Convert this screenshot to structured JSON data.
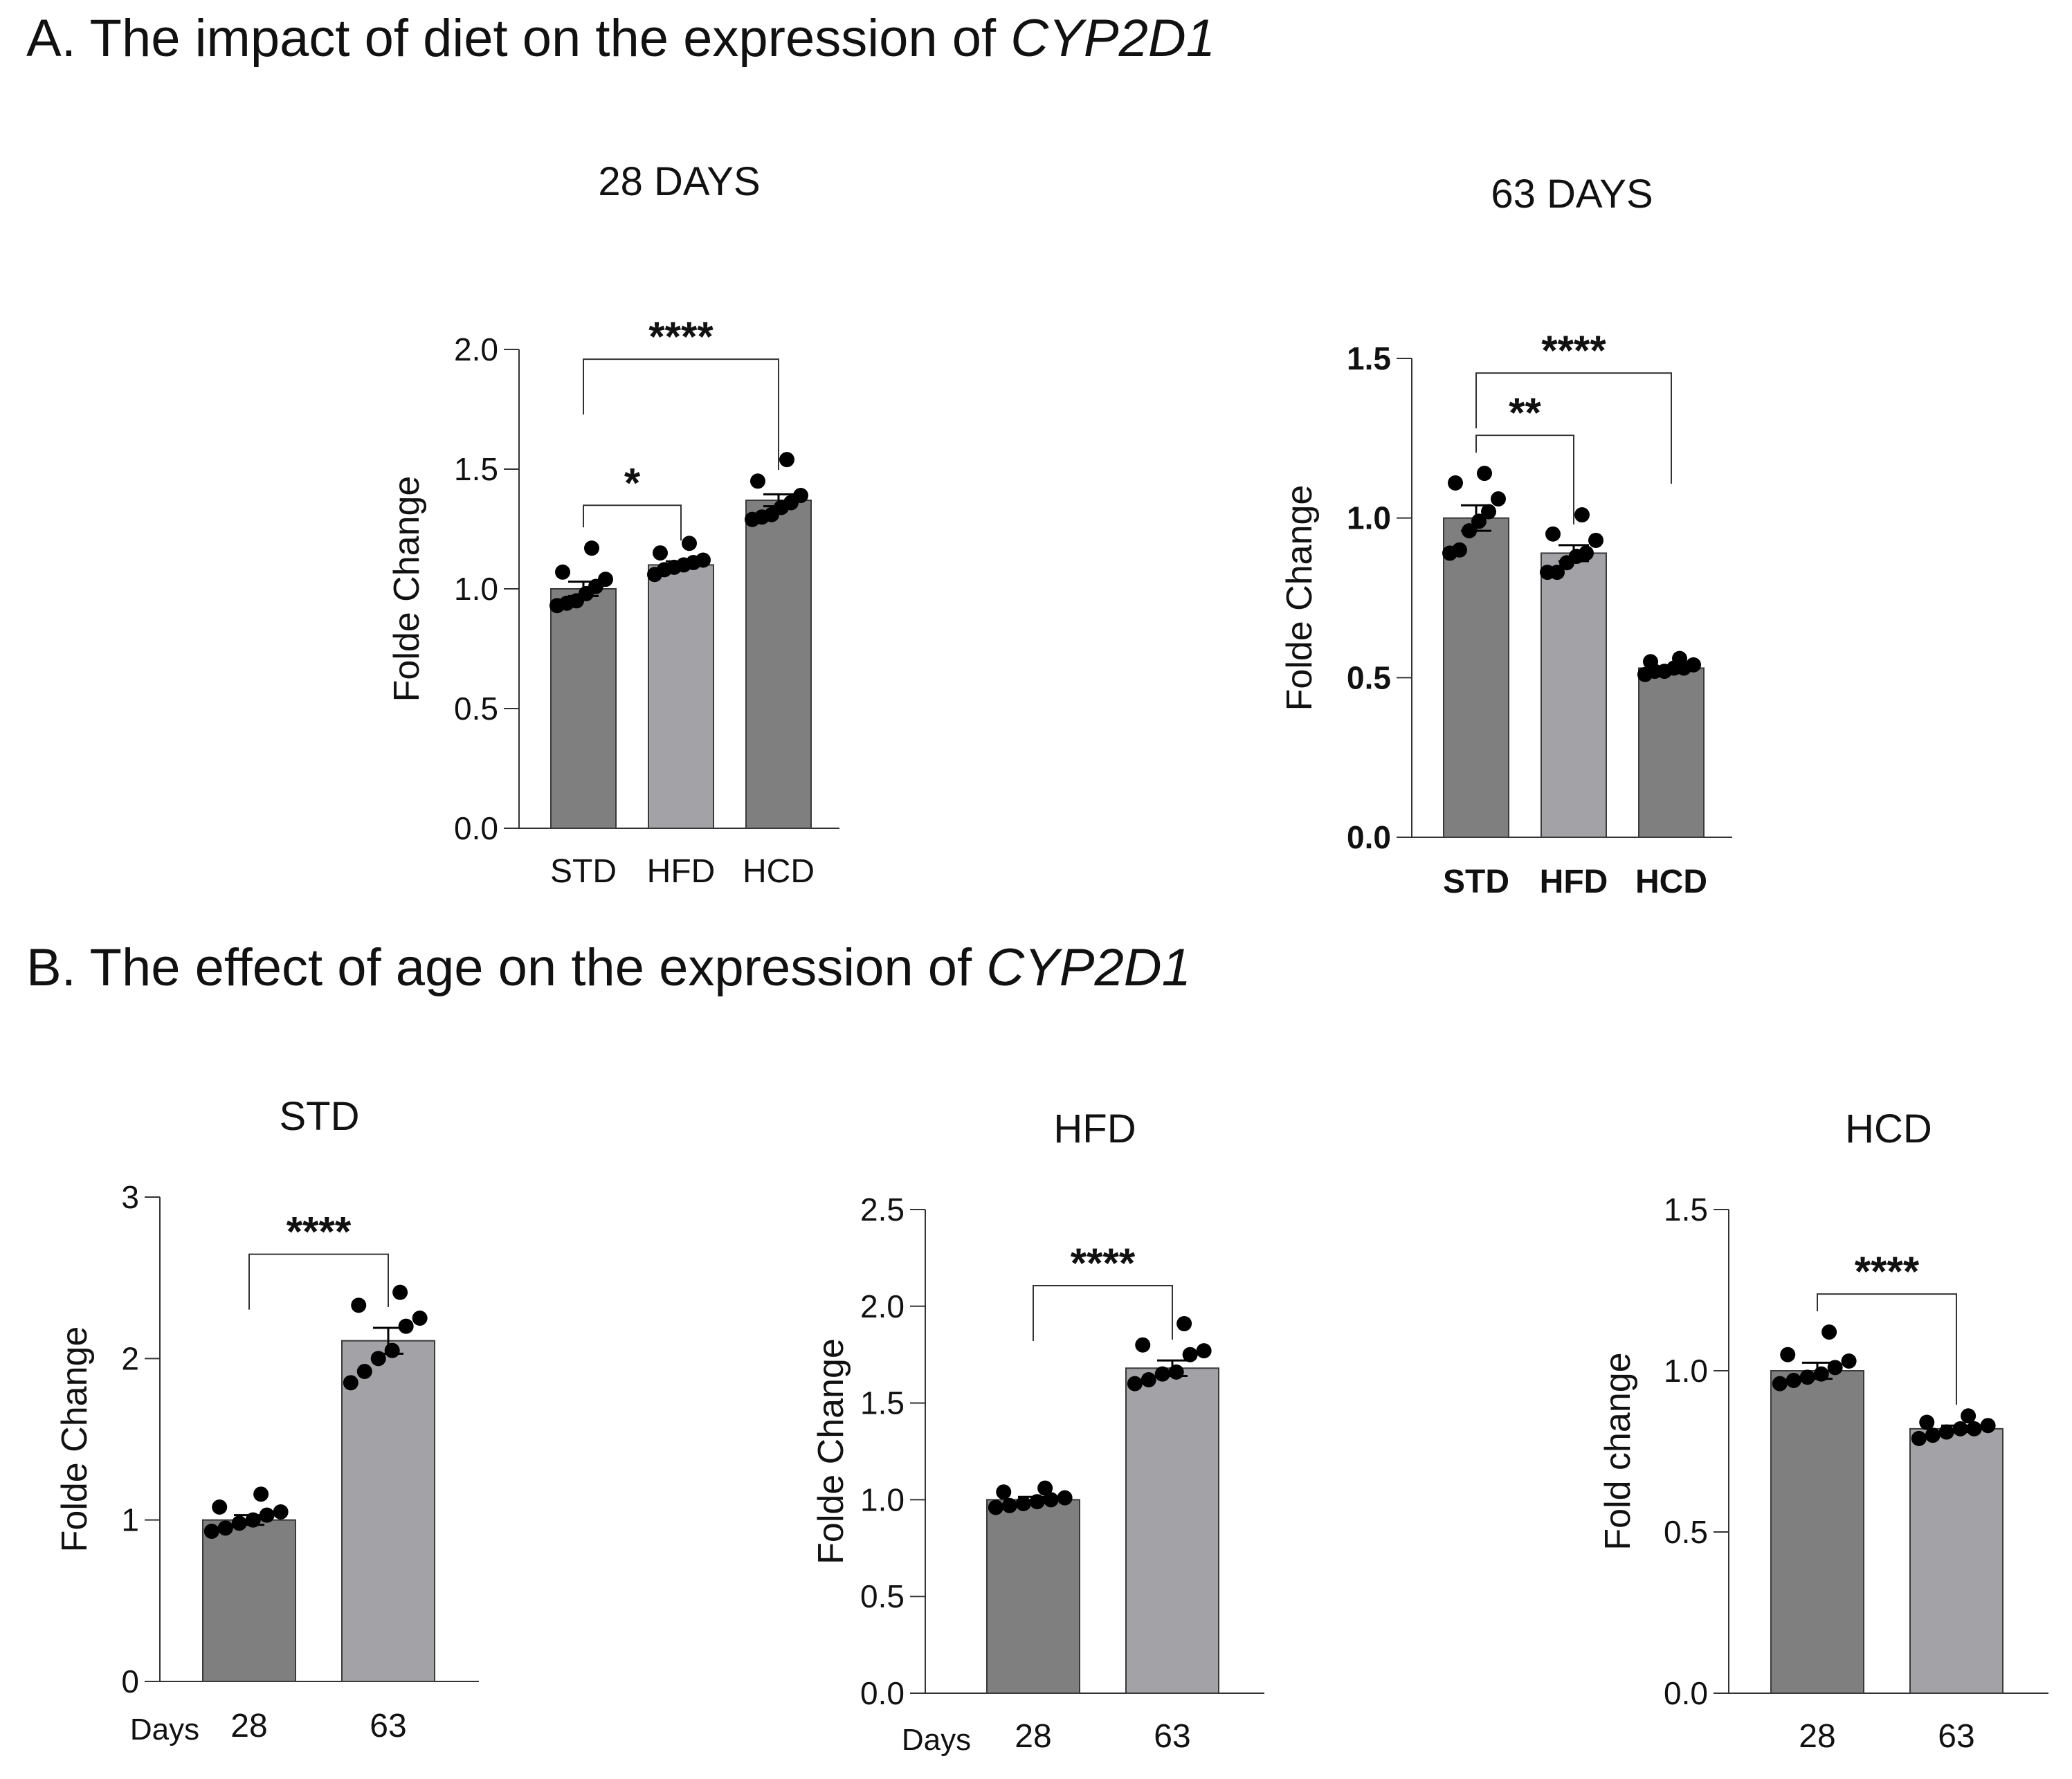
{
  "section_a": {
    "heading": "A. The impact of diet on the expression of ",
    "gene": "CYP2D1"
  },
  "section_b": {
    "heading": "B. The effect of age on the expression of ",
    "gene": "CYP2D1"
  },
  "colors": {
    "bar_dark": "#7f7f7f",
    "bar_light": "#a3a3a7",
    "dot": "#000000",
    "axis": "#333333"
  },
  "chart_data": [
    {
      "id": "a1",
      "type": "bar",
      "title": "28 DAYS",
      "ylabel": "Folde Change",
      "xlabel": "",
      "ylim": [
        0,
        2.0
      ],
      "yticks": [
        0,
        0.5,
        1.0,
        1.5,
        2.0
      ],
      "ytick_labels": [
        "0.0",
        "0.5",
        "1.0",
        "1.5",
        "2.0"
      ],
      "categories": [
        "STD",
        "HFD",
        "HCD"
      ],
      "values": [
        1.0,
        1.1,
        1.37
      ],
      "sem": [
        0.03,
        0.015,
        0.025
      ],
      "bar_colors": [
        "dark",
        "light",
        "dark"
      ],
      "points": [
        [
          0.93,
          0.94,
          0.95,
          0.98,
          1.01,
          1.04,
          1.07,
          1.17
        ],
        [
          1.06,
          1.08,
          1.09,
          1.1,
          1.11,
          1.12,
          1.15,
          1.19
        ],
        [
          1.29,
          1.3,
          1.31,
          1.34,
          1.36,
          1.39,
          1.45,
          1.54
        ]
      ],
      "significance": [
        {
          "from": 0,
          "to": 1,
          "label": "*"
        },
        {
          "from": 0,
          "to": 2,
          "label": "****"
        }
      ],
      "bold_ticks": false
    },
    {
      "id": "a2",
      "type": "bar",
      "title": "63 DAYS",
      "ylabel": "Folde Change",
      "xlabel": "",
      "ylim": [
        0,
        1.5
      ],
      "yticks": [
        0,
        0.5,
        1.0,
        1.5
      ],
      "ytick_labels": [
        "0.0",
        "0.5",
        "1.0",
        "1.5"
      ],
      "categories": [
        "STD",
        "HFD",
        "HCD"
      ],
      "values": [
        1.0,
        0.89,
        0.53
      ],
      "sem": [
        0.04,
        0.025,
        0.005
      ],
      "bar_colors": [
        "dark",
        "light",
        "dark"
      ],
      "points": [
        [
          0.89,
          0.9,
          0.96,
          0.99,
          1.02,
          1.06,
          1.11,
          1.14
        ],
        [
          0.83,
          0.83,
          0.86,
          0.88,
          0.89,
          0.93,
          0.95,
          1.01
        ],
        [
          0.51,
          0.52,
          0.52,
          0.53,
          0.53,
          0.54,
          0.55,
          0.56
        ]
      ],
      "significance": [
        {
          "from": 0,
          "to": 1,
          "label": "**"
        },
        {
          "from": 0,
          "to": 2,
          "label": "****"
        }
      ],
      "bold_ticks": true
    },
    {
      "id": "b1",
      "type": "bar",
      "title": "STD",
      "ylabel": "Folde Change",
      "xlabel": "Days",
      "ylim": [
        0,
        3
      ],
      "yticks": [
        0,
        1,
        2,
        3
      ],
      "ytick_labels": [
        "0",
        "1",
        "2",
        "3"
      ],
      "categories": [
        "28",
        "63"
      ],
      "values": [
        1.0,
        2.11
      ],
      "sem": [
        0.03,
        0.08
      ],
      "bar_colors": [
        "dark",
        "light"
      ],
      "points": [
        [
          0.93,
          0.95,
          0.98,
          1.0,
          1.03,
          1.05,
          1.08,
          1.16
        ],
        [
          1.85,
          1.92,
          2.0,
          2.05,
          2.2,
          2.25,
          2.33,
          2.41
        ]
      ],
      "significance": [
        {
          "from": 0,
          "to": 1,
          "label": "****"
        }
      ],
      "bold_ticks": false
    },
    {
      "id": "b2",
      "type": "bar",
      "title": "HFD",
      "ylabel": "Folde Change",
      "xlabel": "Days",
      "ylim": [
        0,
        2.5
      ],
      "yticks": [
        0,
        0.5,
        1.0,
        1.5,
        2.0,
        2.5
      ],
      "ytick_labels": [
        "0.0",
        "0.5",
        "1.0",
        "1.5",
        "2.0",
        "2.5"
      ],
      "categories": [
        "28",
        "63"
      ],
      "values": [
        1.0,
        1.68
      ],
      "sem": [
        0.015,
        0.04
      ],
      "bar_colors": [
        "dark",
        "light"
      ],
      "points": [
        [
          0.96,
          0.97,
          0.98,
          0.99,
          1.0,
          1.01,
          1.04,
          1.06
        ],
        [
          1.6,
          1.62,
          1.65,
          1.66,
          1.75,
          1.77,
          1.8,
          1.91
        ]
      ],
      "significance": [
        {
          "from": 0,
          "to": 1,
          "label": "****"
        }
      ],
      "bold_ticks": false
    },
    {
      "id": "b3",
      "type": "bar",
      "title": "HCD",
      "ylabel": "Fold change",
      "xlabel": "",
      "ylim": [
        0,
        1.5
      ],
      "yticks": [
        0,
        0.5,
        1.0,
        1.5
      ],
      "ytick_labels": [
        "0.0",
        "0.5",
        "1.0",
        "1.5"
      ],
      "categories": [
        "28",
        "63"
      ],
      "values": [
        1.0,
        0.82
      ],
      "sem": [
        0.025,
        0.01
      ],
      "bar_colors": [
        "dark",
        "light"
      ],
      "points": [
        [
          0.96,
          0.97,
          0.98,
          0.99,
          1.01,
          1.03,
          1.05,
          1.12
        ],
        [
          0.79,
          0.8,
          0.81,
          0.82,
          0.82,
          0.83,
          0.84,
          0.86
        ]
      ],
      "significance": [
        {
          "from": 0,
          "to": 1,
          "label": "****"
        }
      ],
      "bold_ticks": false
    }
  ]
}
